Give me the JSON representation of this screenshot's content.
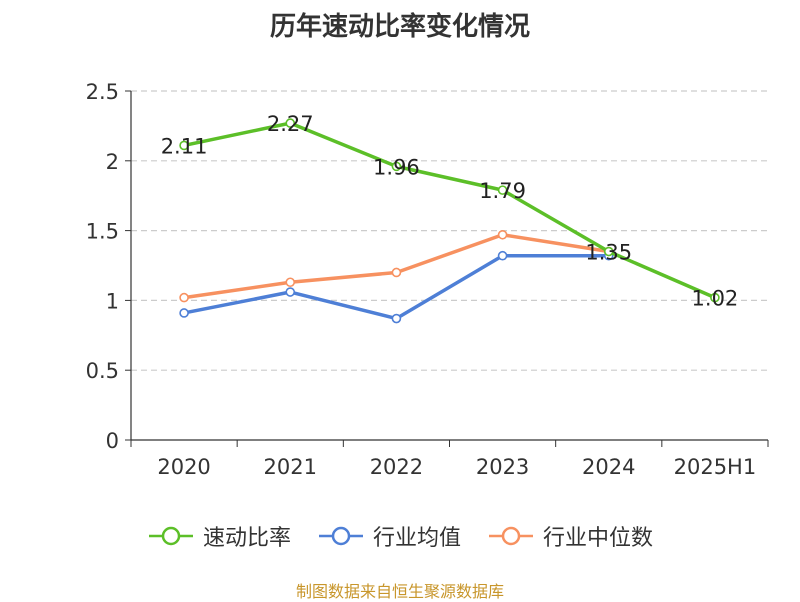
{
  "title": "历年速动比率变化情况",
  "source_note": "制图数据来自恒生聚源数据库",
  "chart_data": {
    "type": "line",
    "title": "历年速动比率变化情况",
    "categories": [
      "2020",
      "2021",
      "2022",
      "2023",
      "2024",
      "2025H1"
    ],
    "ylim": [
      0,
      2.5
    ],
    "yticks": [
      "0",
      "0.5",
      "1",
      "1.5",
      "2",
      "2.5"
    ],
    "grid": true,
    "legend_position": "bottom",
    "series": [
      {
        "name": "速动比率",
        "color": "#5cbf28",
        "values": [
          2.11,
          2.27,
          1.96,
          1.79,
          1.35,
          1.02
        ],
        "labels": [
          "2.11",
          "2.27",
          "1.96",
          "1.79",
          "1.35",
          "1.02"
        ]
      },
      {
        "name": "行业均值",
        "color": "#4e7fd6",
        "values": [
          0.91,
          1.06,
          0.87,
          1.32,
          1.32,
          null
        ]
      },
      {
        "name": "行业中位数",
        "color": "#f79160",
        "values": [
          1.02,
          1.13,
          1.2,
          1.47,
          1.35,
          null
        ]
      }
    ]
  }
}
